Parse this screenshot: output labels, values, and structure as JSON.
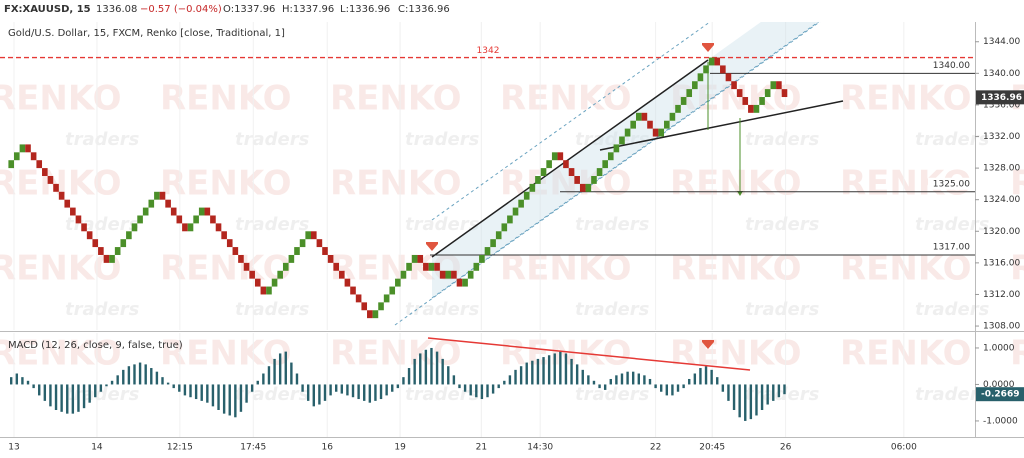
{
  "header": {
    "symbol": "FX:XAUUSD, 15",
    "price": "1336.08",
    "change": "−0.57 (−0.04%)",
    "ohlc": [
      "O:1337.96",
      "H:1337.96",
      "L:1336.96",
      "C:1336.96"
    ]
  },
  "watermark": {
    "brand": "RENKO",
    "sub": "traders"
  },
  "chart_data": [
    {
      "type": "renko",
      "title": "Gold/U.S. Dollar, 15, FXCM, Renko [close, Traditional, 1]",
      "brick_size": 1,
      "up_color": "#4b8f29",
      "down_color": "#b3261e",
      "values": [
        1329,
        1330,
        1331,
        1330,
        1329,
        1328,
        1327,
        1326,
        1325,
        1324,
        1323,
        1322,
        1321,
        1320,
        1319,
        1318,
        1317,
        1316,
        1317,
        1318,
        1319,
        1320,
        1321,
        1322,
        1323,
        1324,
        1325,
        1324,
        1323,
        1322,
        1321,
        1320,
        1321,
        1322,
        1323,
        1322,
        1321,
        1320,
        1319,
        1318,
        1317,
        1316,
        1315,
        1314,
        1313,
        1312,
        1313,
        1314,
        1315,
        1316,
        1317,
        1318,
        1319,
        1320,
        1319,
        1318,
        1317,
        1316,
        1315,
        1314,
        1313,
        1312,
        1311,
        1310,
        1309,
        1310,
        1311,
        1312,
        1313,
        1314,
        1315,
        1316,
        1317,
        1316,
        1315,
        1316,
        1315,
        1314,
        1315,
        1314,
        1313,
        1314,
        1315,
        1316,
        1317,
        1318,
        1319,
        1320,
        1321,
        1322,
        1323,
        1324,
        1325,
        1326,
        1327,
        1328,
        1329,
        1330,
        1329,
        1328,
        1327,
        1326,
        1325,
        1326,
        1327,
        1328,
        1329,
        1330,
        1331,
        1332,
        1333,
        1334,
        1335,
        1334,
        1333,
        1332,
        1333,
        1334,
        1335,
        1336,
        1337,
        1338,
        1339,
        1340,
        1341,
        1342,
        1341,
        1340,
        1339,
        1338,
        1337,
        1336,
        1335,
        1336,
        1337,
        1338,
        1339,
        1338,
        1337
      ],
      "last_price": 1336.96,
      "xlim": [
        -2,
        172
      ],
      "xticks": [
        {
          "value": 0.5,
          "label": "13"
        },
        {
          "value": 15.3,
          "label": "14"
        },
        {
          "value": 30.1,
          "label": "12:15"
        },
        {
          "value": 43.2,
          "label": "17:45"
        },
        {
          "value": 56.4,
          "label": "16"
        },
        {
          "value": 69.4,
          "label": "19"
        },
        {
          "value": 83.9,
          "label": "21"
        },
        {
          "value": 94.4,
          "label": "14:30"
        },
        {
          "value": 115,
          "label": "22"
        },
        {
          "value": 125.1,
          "label": "20:45"
        },
        {
          "value": 138.2,
          "label": "26"
        },
        {
          "value": 159.3,
          "label": "06:00"
        }
      ],
      "ylim": [
        1307.5,
        1346.5
      ],
      "yticks": [
        {
          "value": 1308,
          "label": "1308.00"
        },
        {
          "value": 1312,
          "label": "1312.00"
        },
        {
          "value": 1316,
          "label": "1316.00"
        },
        {
          "value": 1320,
          "label": "1320.00"
        },
        {
          "value": 1324,
          "label": "1324.00"
        },
        {
          "value": 1328,
          "label": "1328.00"
        },
        {
          "value": 1332,
          "label": "1332.00"
        },
        {
          "value": 1336,
          "label": "1336.00"
        },
        {
          "value": 1340,
          "label": "1340.00"
        },
        {
          "value": 1344,
          "label": "1344.00"
        }
      ],
      "levels": [
        1342,
        {
          "value": 1340,
          "label": "1340.00"
        },
        {
          "value": 1325,
          "label": "1325.00"
        },
        {
          "value": 1317,
          "label": "1317.00"
        }
      ],
      "grid": true
    },
    {
      "type": "histogram",
      "title": "MACD (12, 26, close, 9, false, true)",
      "color": "#28606b",
      "values": [
        0.2,
        0.3,
        0.2,
        0.1,
        -0.1,
        -0.3,
        -0.45,
        -0.6,
        -0.7,
        -0.75,
        -0.8,
        -0.8,
        -0.75,
        -0.65,
        -0.5,
        -0.35,
        -0.2,
        -0.05,
        0.1,
        0.25,
        0.4,
        0.5,
        0.55,
        0.6,
        0.55,
        0.45,
        0.35,
        0.2,
        0.05,
        -0.1,
        -0.2,
        -0.3,
        -0.35,
        -0.4,
        -0.45,
        -0.5,
        -0.6,
        -0.7,
        -0.8,
        -0.85,
        -0.9,
        -0.75,
        -0.5,
        -0.2,
        0.1,
        0.3,
        0.5,
        0.7,
        0.85,
        0.9,
        0.6,
        0.3,
        -0.2,
        -0.45,
        -0.6,
        -0.55,
        -0.45,
        -0.3,
        -0.2,
        -0.25,
        -0.3,
        -0.35,
        -0.4,
        -0.45,
        -0.5,
        -0.45,
        -0.4,
        -0.3,
        -0.2,
        -0.1,
        0.2,
        0.45,
        0.7,
        0.85,
        0.95,
        1.0,
        0.9,
        0.7,
        0.5,
        0.25,
        -0.1,
        -0.2,
        -0.3,
        -0.35,
        -0.4,
        -0.35,
        -0.25,
        -0.1,
        0.1,
        0.25,
        0.4,
        0.5,
        0.6,
        0.65,
        0.7,
        0.75,
        0.8,
        0.85,
        0.9,
        0.85,
        0.7,
        0.55,
        0.4,
        0.25,
        0.1,
        -0.1,
        -0.15,
        0.15,
        0.25,
        0.3,
        0.35,
        0.35,
        0.3,
        0.25,
        0.15,
        -0.1,
        -0.2,
        -0.3,
        -0.3,
        -0.2,
        -0.1,
        0.15,
        0.3,
        0.45,
        0.5,
        0.4,
        0.2,
        -0.2,
        -0.45,
        -0.7,
        -0.9,
        -1.0,
        -0.95,
        -0.85,
        -0.7,
        -0.55,
        -0.45,
        -0.35,
        -0.2669
      ],
      "xlim": [
        -2,
        172
      ],
      "ylim": [
        -1.44,
        1.41
      ],
      "yticks": [
        {
          "value": 1,
          "label": "1.0000"
        },
        {
          "value": 0,
          "label": "0.0000"
        },
        {
          "value": -1,
          "label": "-1.0000"
        }
      ],
      "grid": true
    }
  ]
}
